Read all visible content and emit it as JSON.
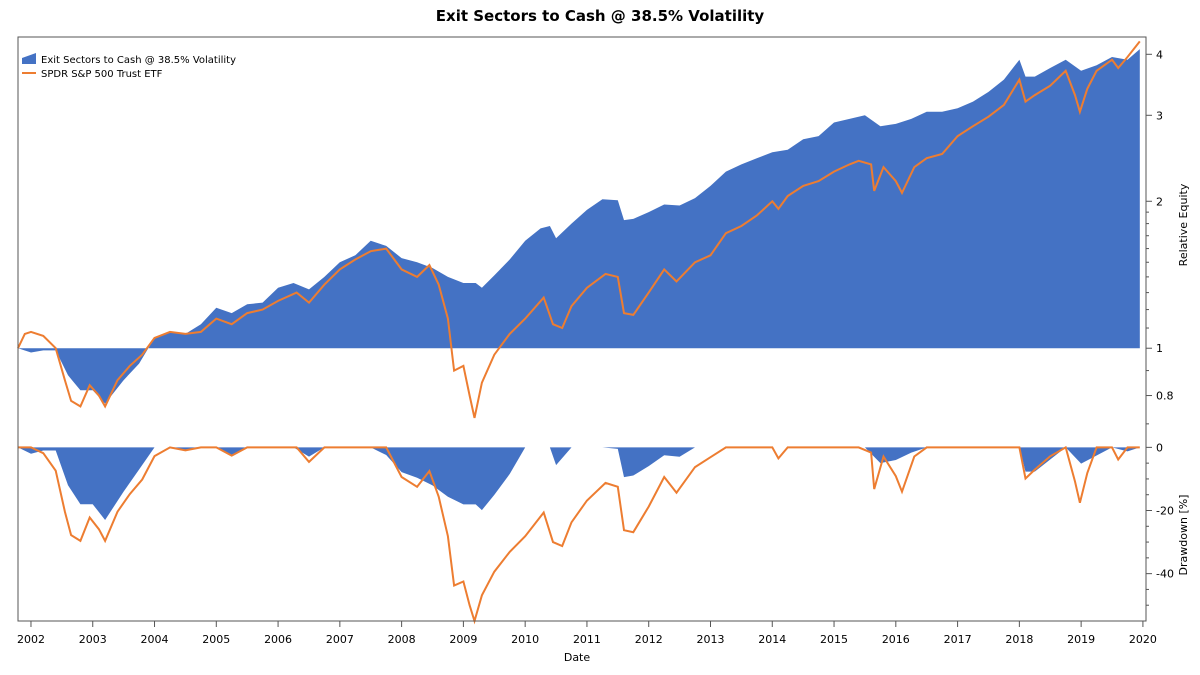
{
  "chart_data": {
    "type": "area",
    "title": "Exit Sectors to Cash @ 38.5% Volatility",
    "xlabel": "Date",
    "legend_position": "top-left",
    "colors": {
      "strategy": "#4472c4",
      "benchmark": "#ed7d31"
    },
    "x_ticks": [
      "2002",
      "2003",
      "2004",
      "2005",
      "2006",
      "2007",
      "2008",
      "2009",
      "2010",
      "2011",
      "2012",
      "2013",
      "2014",
      "2015",
      "2016",
      "2017",
      "2018",
      "2019",
      "2020"
    ],
    "xlim": [
      2001.79,
      2020.05
    ],
    "panels": [
      {
        "name": "equity",
        "ylabel": "Relative Equity",
        "scale": "log",
        "ylim": [
          0.68,
          4.34
        ],
        "y_ticks": [
          {
            "v": 4,
            "label": "4"
          },
          {
            "v": 3,
            "label": "3"
          },
          {
            "v": 2,
            "label": "2"
          },
          {
            "v": 1,
            "label": "1"
          },
          {
            "v": 0.8,
            "label": "0.8"
          }
        ],
        "minor_ticks": [
          0.7,
          0.9,
          1.1,
          1.2,
          1.3,
          1.4,
          1.5,
          1.6,
          1.7,
          1.8,
          1.9
        ]
      },
      {
        "name": "drawdown",
        "ylabel": "Drawdown [%]",
        "scale": "linear",
        "ylim": [
          -55,
          5.5
        ],
        "y_ticks": [
          {
            "v": 0,
            "label": "0"
          },
          {
            "v": -20,
            "label": "-20"
          },
          {
            "v": -40,
            "label": "-40"
          }
        ],
        "minor_ticks": [
          -5,
          -10,
          -15,
          -25,
          -30,
          -35,
          -45,
          -50
        ]
      }
    ],
    "series": [
      {
        "name": "Exit Sectors to Cash @ 38.5% Volatility",
        "style": "area",
        "x": [
          2001.79,
          2002.0,
          2002.2,
          2002.4,
          2002.6,
          2002.8,
          2003.0,
          2003.2,
          2003.5,
          2003.75,
          2004.0,
          2004.25,
          2004.5,
          2004.75,
          2005.0,
          2005.25,
          2005.5,
          2005.75,
          2006.0,
          2006.25,
          2006.5,
          2006.75,
          2007.0,
          2007.25,
          2007.5,
          2007.75,
          2008.0,
          2008.25,
          2008.5,
          2008.75,
          2009.0,
          2009.2,
          2009.3,
          2009.5,
          2009.75,
          2010.0,
          2010.25,
          2010.4,
          2010.5,
          2010.75,
          2011.0,
          2011.25,
          2011.5,
          2011.6,
          2011.75,
          2012.0,
          2012.25,
          2012.5,
          2012.75,
          2013.0,
          2013.25,
          2013.5,
          2013.75,
          2014.0,
          2014.25,
          2014.5,
          2014.75,
          2015.0,
          2015.25,
          2015.5,
          2015.75,
          2016.0,
          2016.25,
          2016.5,
          2016.75,
          2017.0,
          2017.25,
          2017.5,
          2017.75,
          2018.0,
          2018.1,
          2018.25,
          2018.5,
          2018.75,
          2019.0,
          2019.25,
          2019.5,
          2019.75,
          2019.95
        ],
        "y": [
          1.0,
          0.98,
          0.99,
          0.99,
          0.88,
          0.82,
          0.82,
          0.77,
          0.86,
          0.93,
          1.05,
          1.08,
          1.07,
          1.12,
          1.21,
          1.18,
          1.23,
          1.24,
          1.33,
          1.36,
          1.32,
          1.4,
          1.5,
          1.55,
          1.66,
          1.62,
          1.53,
          1.5,
          1.46,
          1.4,
          1.36,
          1.36,
          1.33,
          1.41,
          1.52,
          1.66,
          1.76,
          1.78,
          1.68,
          1.8,
          1.92,
          2.02,
          2.01,
          1.83,
          1.84,
          1.9,
          1.97,
          1.96,
          2.03,
          2.15,
          2.3,
          2.38,
          2.45,
          2.52,
          2.55,
          2.68,
          2.72,
          2.9,
          2.95,
          3.0,
          2.85,
          2.88,
          2.95,
          3.05,
          3.05,
          3.1,
          3.2,
          3.35,
          3.55,
          3.9,
          3.6,
          3.6,
          3.75,
          3.9,
          3.7,
          3.8,
          3.95,
          3.9,
          4.1
        ]
      },
      {
        "name": "SPDR S&P 500 Trust ETF",
        "style": "line",
        "x": [
          2001.79,
          2001.9,
          2002.0,
          2002.2,
          2002.4,
          2002.55,
          2002.65,
          2002.8,
          2002.95,
          2003.1,
          2003.2,
          2003.4,
          2003.6,
          2003.8,
          2004.0,
          2004.25,
          2004.5,
          2004.75,
          2005.0,
          2005.25,
          2005.5,
          2005.75,
          2006.0,
          2006.3,
          2006.5,
          2006.75,
          2007.0,
          2007.25,
          2007.5,
          2007.75,
          2008.0,
          2008.25,
          2008.45,
          2008.6,
          2008.75,
          2008.85,
          2009.0,
          2009.1,
          2009.18,
          2009.3,
          2009.5,
          2009.75,
          2010.0,
          2010.3,
          2010.45,
          2010.6,
          2010.75,
          2011.0,
          2011.3,
          2011.5,
          2011.6,
          2011.75,
          2012.0,
          2012.25,
          2012.45,
          2012.75,
          2013.0,
          2013.25,
          2013.5,
          2013.75,
          2014.0,
          2014.1,
          2014.25,
          2014.5,
          2014.75,
          2015.0,
          2015.25,
          2015.4,
          2015.6,
          2015.65,
          2015.8,
          2016.0,
          2016.1,
          2016.3,
          2016.5,
          2016.75,
          2017.0,
          2017.25,
          2017.5,
          2017.75,
          2018.0,
          2018.1,
          2018.25,
          2018.5,
          2018.75,
          2018.9,
          2018.98,
          2019.1,
          2019.25,
          2019.5,
          2019.6,
          2019.75,
          2019.95
        ],
        "y": [
          1.0,
          1.07,
          1.08,
          1.06,
          1.0,
          0.86,
          0.78,
          0.76,
          0.84,
          0.8,
          0.76,
          0.86,
          0.92,
          0.97,
          1.05,
          1.08,
          1.07,
          1.08,
          1.15,
          1.12,
          1.18,
          1.2,
          1.25,
          1.3,
          1.24,
          1.35,
          1.45,
          1.52,
          1.58,
          1.6,
          1.45,
          1.4,
          1.48,
          1.35,
          1.15,
          0.9,
          0.92,
          0.8,
          0.72,
          0.85,
          0.97,
          1.07,
          1.15,
          1.27,
          1.12,
          1.1,
          1.22,
          1.33,
          1.42,
          1.4,
          1.18,
          1.17,
          1.3,
          1.45,
          1.37,
          1.5,
          1.55,
          1.72,
          1.78,
          1.87,
          2.0,
          1.93,
          2.05,
          2.15,
          2.2,
          2.3,
          2.38,
          2.42,
          2.38,
          2.1,
          2.35,
          2.2,
          2.08,
          2.35,
          2.45,
          2.5,
          2.72,
          2.85,
          2.98,
          3.15,
          3.55,
          3.2,
          3.3,
          3.45,
          3.7,
          3.3,
          3.05,
          3.4,
          3.7,
          3.9,
          3.75,
          3.95,
          4.25
        ]
      }
    ]
  }
}
